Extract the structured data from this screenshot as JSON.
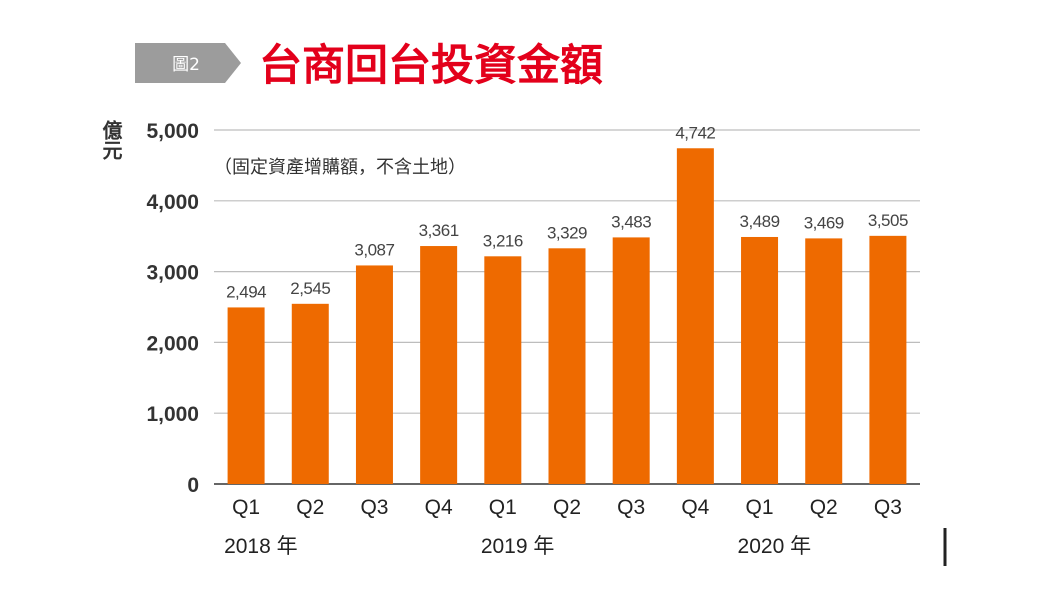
{
  "badge": "圖2",
  "chart_data": {
    "type": "bar",
    "title": "台商回台投資金額",
    "subtitle": "（固定資產增購額，不含土地）",
    "ylabel": "億元",
    "xlabel": "",
    "categories": [
      "Q1",
      "Q2",
      "Q3",
      "Q4",
      "Q1",
      "Q2",
      "Q3",
      "Q4",
      "Q1",
      "Q2",
      "Q3"
    ],
    "year_labels": [
      {
        "label": "2018 年",
        "category_index": 0
      },
      {
        "label": "2019 年",
        "category_index": 4
      },
      {
        "label": "2020 年",
        "category_index": 8
      }
    ],
    "values": [
      2494,
      2545,
      3087,
      3361,
      3216,
      3329,
      3483,
      4742,
      3489,
      3469,
      3505
    ],
    "value_labels": [
      "2,494",
      "2,545",
      "3,087",
      "3,361",
      "3,216",
      "3,329",
      "3,483",
      "4,742",
      "3,489",
      "3,469",
      "3,505"
    ],
    "yticks": [
      0,
      1000,
      2000,
      3000,
      4000,
      5000
    ],
    "ytick_labels": [
      "0",
      "1,000",
      "2,000",
      "3,000",
      "4,000",
      "5,000"
    ],
    "ylim": [
      0,
      5000
    ],
    "grid": true,
    "bar_color": "#EE6A00",
    "title_color": "#E3001B",
    "badge_color": "#9C9C9C",
    "grid_color": "#BDBDBD"
  }
}
